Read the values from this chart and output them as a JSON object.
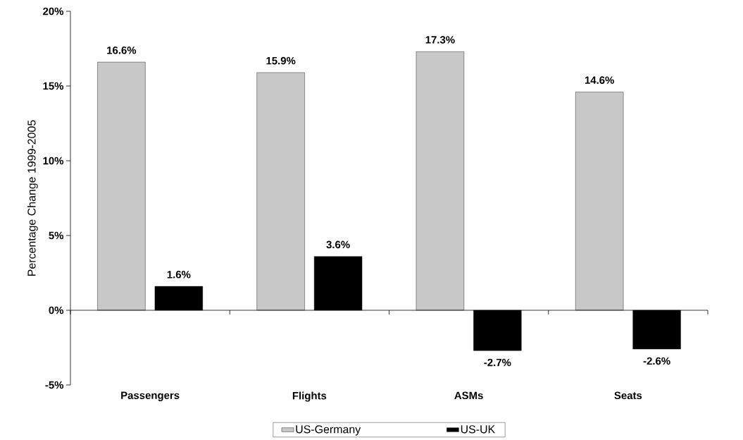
{
  "chart_data": {
    "type": "bar",
    "ylabel": "Percentage Change 1999-2005",
    "categories": [
      "Passengers",
      "Flights",
      "ASMs",
      "Seats"
    ],
    "series": [
      {
        "name": "US-Germany",
        "color": "#c8c8c8",
        "values": [
          16.6,
          15.9,
          17.3,
          14.6
        ],
        "value_labels": [
          "16.6%",
          "15.9%",
          "17.3%",
          "14.6%"
        ]
      },
      {
        "name": "US-UK",
        "color": "#000000",
        "values": [
          1.6,
          3.6,
          -2.7,
          -2.6
        ],
        "value_labels": [
          "1.6%",
          "3.6%",
          "-2.7%",
          "-2.6%"
        ]
      }
    ],
    "ylim": [
      -5,
      20
    ],
    "yticks": [
      {
        "value": -5,
        "label": "-5%"
      },
      {
        "value": 0,
        "label": "0%"
      },
      {
        "value": 5,
        "label": "5%"
      },
      {
        "value": 10,
        "label": "10%"
      },
      {
        "value": 15,
        "label": "15%"
      },
      {
        "value": 20,
        "label": "20%"
      }
    ],
    "legend": "bottom"
  }
}
